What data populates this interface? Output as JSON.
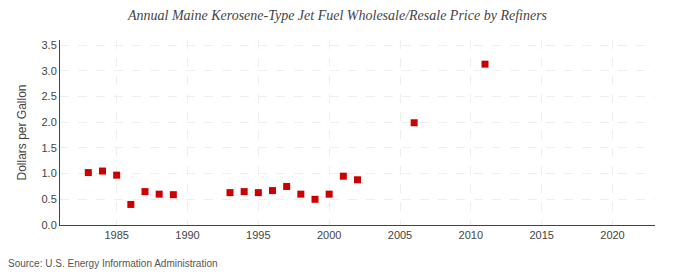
{
  "chart_data": {
    "type": "scatter",
    "title": "Annual Maine Kerosene-Type Jet Fuel Wholesale/Resale Price by Refiners",
    "ylabel": "Dollars per Gallon",
    "annotations": [
      "Source: U.S. Energy Information Administration"
    ],
    "x": [
      1983,
      1984,
      1985,
      1986,
      1987,
      1988,
      1989,
      1993,
      1994,
      1995,
      1996,
      1997,
      1998,
      1999,
      2000,
      2001,
      2002,
      2006,
      2011
    ],
    "values": [
      1.02,
      1.05,
      0.97,
      0.4,
      0.65,
      0.6,
      0.59,
      0.63,
      0.65,
      0.63,
      0.67,
      0.75,
      0.6,
      0.5,
      0.6,
      0.95,
      0.88,
      1.99,
      3.13
    ],
    "color": "#cc0000",
    "marker": "square",
    "xlim": [
      1981,
      2023
    ],
    "ylim": [
      0.0,
      3.6
    ],
    "xticks": [
      1985,
      1990,
      1995,
      2000,
      2005,
      2010,
      2015,
      2020
    ],
    "yticks": [
      {
        "value": 0.0,
        "label": "0.0"
      },
      0.5,
      {
        "value": 1.0,
        "label": "1.0"
      },
      1.5,
      {
        "value": 2.0,
        "label": "2.0"
      },
      2.5,
      {
        "value": 3.0,
        "label": "3.0"
      },
      3.5
    ],
    "grid": true
  }
}
